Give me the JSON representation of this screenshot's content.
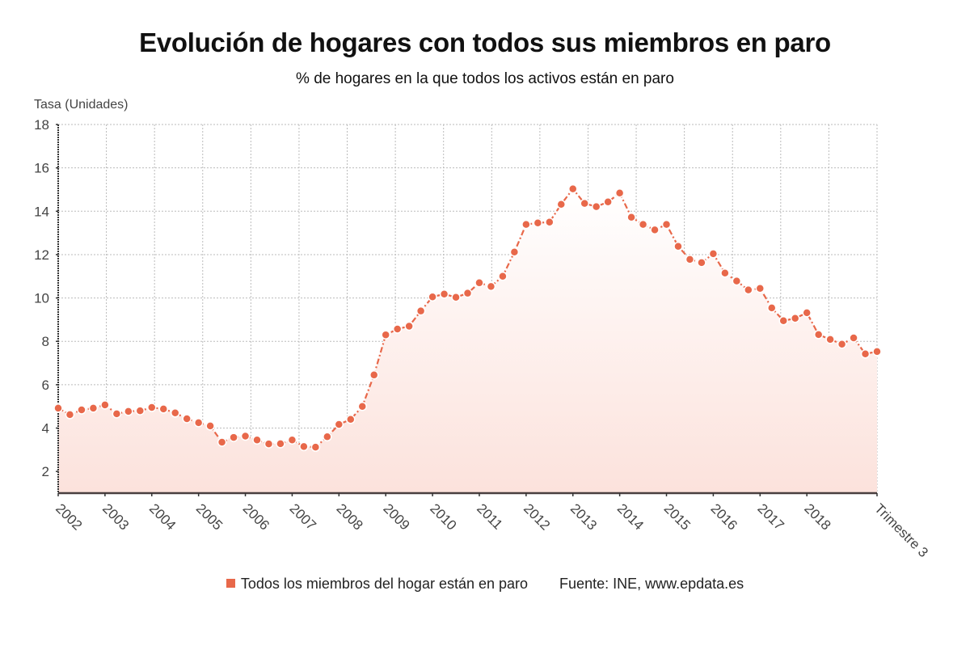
{
  "chart_data": {
    "type": "area",
    "title": "Evolución de hogares con todos sus miembros en paro",
    "subtitle": "% de hogares en la que todos los activos están en paro",
    "ylabel": "Tasa (Unidades)",
    "xlabel": "",
    "ylim": [
      1,
      18
    ],
    "yticks": [
      2,
      4,
      6,
      8,
      10,
      12,
      14,
      16,
      18
    ],
    "grid": true,
    "legend_position": "bottom",
    "x_tick_labels": [
      "2002",
      "2003",
      "2004",
      "2005",
      "2006",
      "2007",
      "2008",
      "2009",
      "2010",
      "2011",
      "2012",
      "2013",
      "2014",
      "2015",
      "2016",
      "2017",
      "2018",
      "Trimestre 3"
    ],
    "x_tick_indices": [
      0,
      4,
      8,
      12,
      16,
      20,
      24,
      28,
      32,
      36,
      40,
      44,
      48,
      52,
      56,
      60,
      64,
      70
    ],
    "series": [
      {
        "name": "Todos los miembros del hogar están en paro",
        "color": "#E8684A",
        "start": "2002 T1",
        "frequency": "quarterly",
        "values": [
          4.92,
          4.62,
          4.84,
          4.92,
          5.07,
          4.66,
          4.77,
          4.8,
          4.95,
          4.88,
          4.7,
          4.43,
          4.25,
          4.1,
          3.35,
          3.57,
          3.63,
          3.45,
          3.27,
          3.28,
          3.45,
          3.15,
          3.12,
          3.6,
          4.17,
          4.4,
          5.0,
          6.45,
          8.3,
          8.57,
          8.7,
          9.4,
          10.05,
          10.18,
          10.03,
          10.22,
          10.7,
          10.53,
          11.0,
          12.12,
          13.39,
          13.46,
          13.5,
          14.32,
          15.03,
          14.36,
          14.21,
          14.43,
          14.84,
          13.72,
          13.39,
          13.14,
          13.39,
          12.38,
          11.78,
          11.63,
          12.04,
          11.15,
          10.78,
          10.37,
          10.44,
          9.54,
          8.95,
          9.06,
          9.32,
          8.31,
          8.09,
          7.87,
          8.16,
          7.42,
          7.53
        ]
      }
    ],
    "source": "Fuente: INE, www.epdata.es"
  }
}
